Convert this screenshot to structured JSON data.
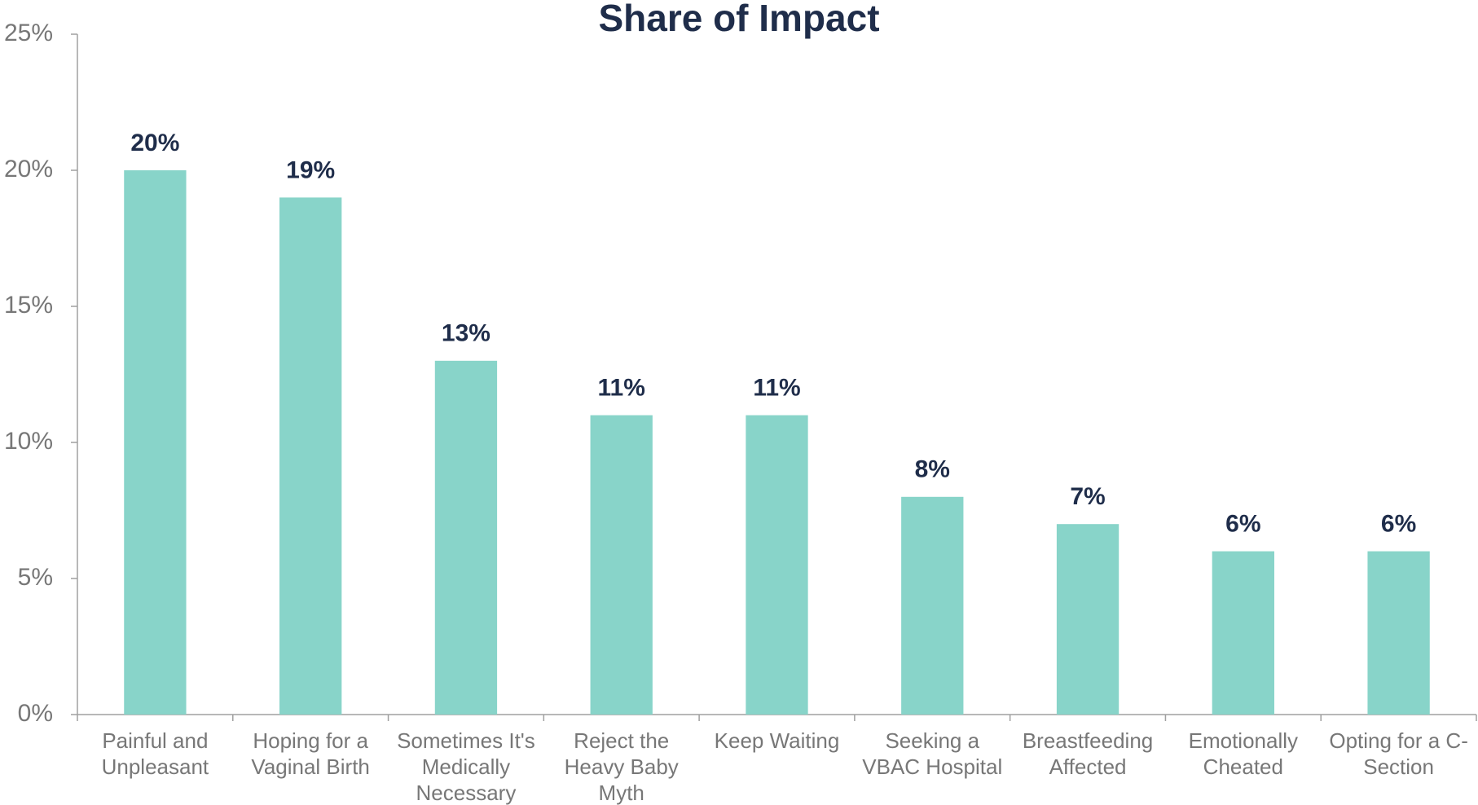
{
  "chart_data": {
    "type": "bar",
    "title": "Share of Impact",
    "categories": [
      "Painful and Unpleasant",
      "Hoping for a Vaginal Birth",
      "Sometimes It's Medically Necessary",
      "Reject the Heavy Baby Myth",
      "Keep Waiting",
      "Seeking a VBAC Hospital",
      "Breastfeeding Affected",
      "Emotionally Cheated",
      "Opting for a C-Section"
    ],
    "values": [
      20,
      19,
      13,
      11,
      11,
      8,
      7,
      6,
      6
    ],
    "value_labels": [
      "20%",
      "19%",
      "13%",
      "11%",
      "11%",
      "8%",
      "7%",
      "6%",
      "6%"
    ],
    "color": "#88d4c9",
    "ylim": [
      0,
      25
    ],
    "yticks": [
      {
        "value": 0,
        "label": "0%"
      },
      {
        "value": 5,
        "label": "5%"
      },
      {
        "value": 10,
        "label": "10%"
      },
      {
        "value": 15,
        "label": "15%"
      },
      {
        "value": 20,
        "label": "20%"
      },
      {
        "value": 25,
        "label": "25%"
      }
    ],
    "grid": false
  }
}
